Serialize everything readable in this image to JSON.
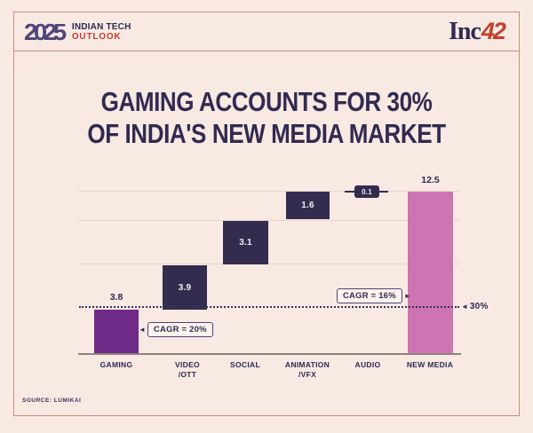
{
  "page": {
    "background_color": "#f8e9e3",
    "frame_border_color": "#ca8d80"
  },
  "header": {
    "logo": {
      "year": "2025",
      "line1": "INDIAN TECH",
      "line2": "OUTLOOK"
    },
    "brand": {
      "part1": "Inc",
      "part2": "42"
    }
  },
  "title": {
    "line1": "GAMING ACCOUNTS FOR 30%",
    "line2": "OF INDIA'S NEW MEDIA MARKET"
  },
  "chart_data": {
    "type": "bar",
    "subtype": "waterfall",
    "title": "GAMING ACCOUNTS FOR 30% OF INDIA'S NEW MEDIA MARKET",
    "categories": [
      "GAMING",
      "VIDEO /OTT",
      "SOCIAL",
      "ANIMATION /VFX",
      "AUDIO",
      "NEW MEDIA"
    ],
    "categories_lines": [
      [
        "GAMING"
      ],
      [
        "VIDEO",
        "/OTT"
      ],
      [
        "SOCIAL"
      ],
      [
        "ANIMATION",
        "/VFX"
      ],
      [
        "AUDIO"
      ],
      [
        "NEW MEDIA"
      ]
    ],
    "values": [
      "3.8",
      "3.9",
      "3.1",
      "1.6",
      "0.1",
      "12.5"
    ],
    "cumulative": [
      3.8,
      7.7,
      10.8,
      12.4,
      12.5,
      12.5
    ],
    "bar_colors": [
      "#6f2a87",
      "#332c4e",
      "#332c4e",
      "#332c4e",
      "#332c4e",
      "#ce74b2"
    ],
    "ylim": [
      0,
      13
    ],
    "grid": "horizontal step lines at cumulative levels",
    "legend_position": "none",
    "annotations": {
      "gaming_cagr": "CAGR = 20%",
      "new_media_cagr": "CAGR = 16%",
      "share_line_label": "30%",
      "share_line_level": 3.8
    }
  },
  "icons": {
    "arrow_left": "◄",
    "arrow_right": "►"
  },
  "source": "SOURCE: LUMIKAI",
  "colors": {
    "title_navy": "#322a50",
    "bar_purple": "#6f2a87",
    "bar_navy": "#332c4e",
    "bar_pink": "#ce74b2",
    "accent_red": "#c0402e",
    "gridline": "#e8d4cd",
    "axis": "#8d817c"
  }
}
